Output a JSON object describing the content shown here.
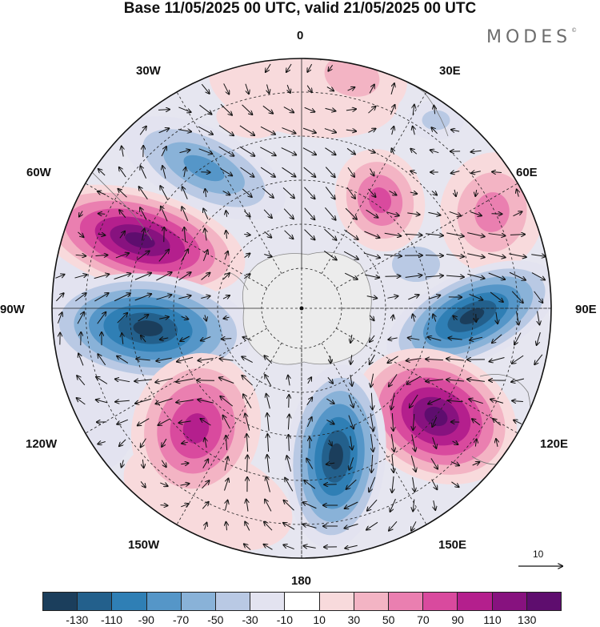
{
  "title": "Base 11/05/2025 00 UTC, valid 21/05/2025 00 UTC",
  "logo_text": "MODES",
  "logo_mark": "©",
  "longitude_labels": [
    "0",
    "30E",
    "60E",
    "90E",
    "120E",
    "150E",
    "180",
    "150W",
    "120W",
    "90W",
    "60W",
    "30W"
  ],
  "reference_vector_label": "10",
  "colorbar": {
    "tick_labels": [
      "-130",
      "-110",
      "-90",
      "-70",
      "-50",
      "-30",
      "-10",
      "10",
      "30",
      "50",
      "70",
      "90",
      "110",
      "130"
    ],
    "colors": [
      "#1b3e5c",
      "#23608c",
      "#2f7fb5",
      "#5596c8",
      "#89b2d8",
      "#b9c9e4",
      "#e3e3f0",
      "#ffffff",
      "#f8dadc",
      "#f3b4c4",
      "#ea7fb0",
      "#d94a9e",
      "#b41f8d",
      "#87127f",
      "#5e0d6e"
    ]
  },
  "anomaly_colors": {
    "negative_strong": "#1b3e5c",
    "negative_weak": "#b9c9e4",
    "positive_weak": "#f8dadc",
    "positive_strong": "#5e0d6e",
    "land": "#ececec"
  }
}
